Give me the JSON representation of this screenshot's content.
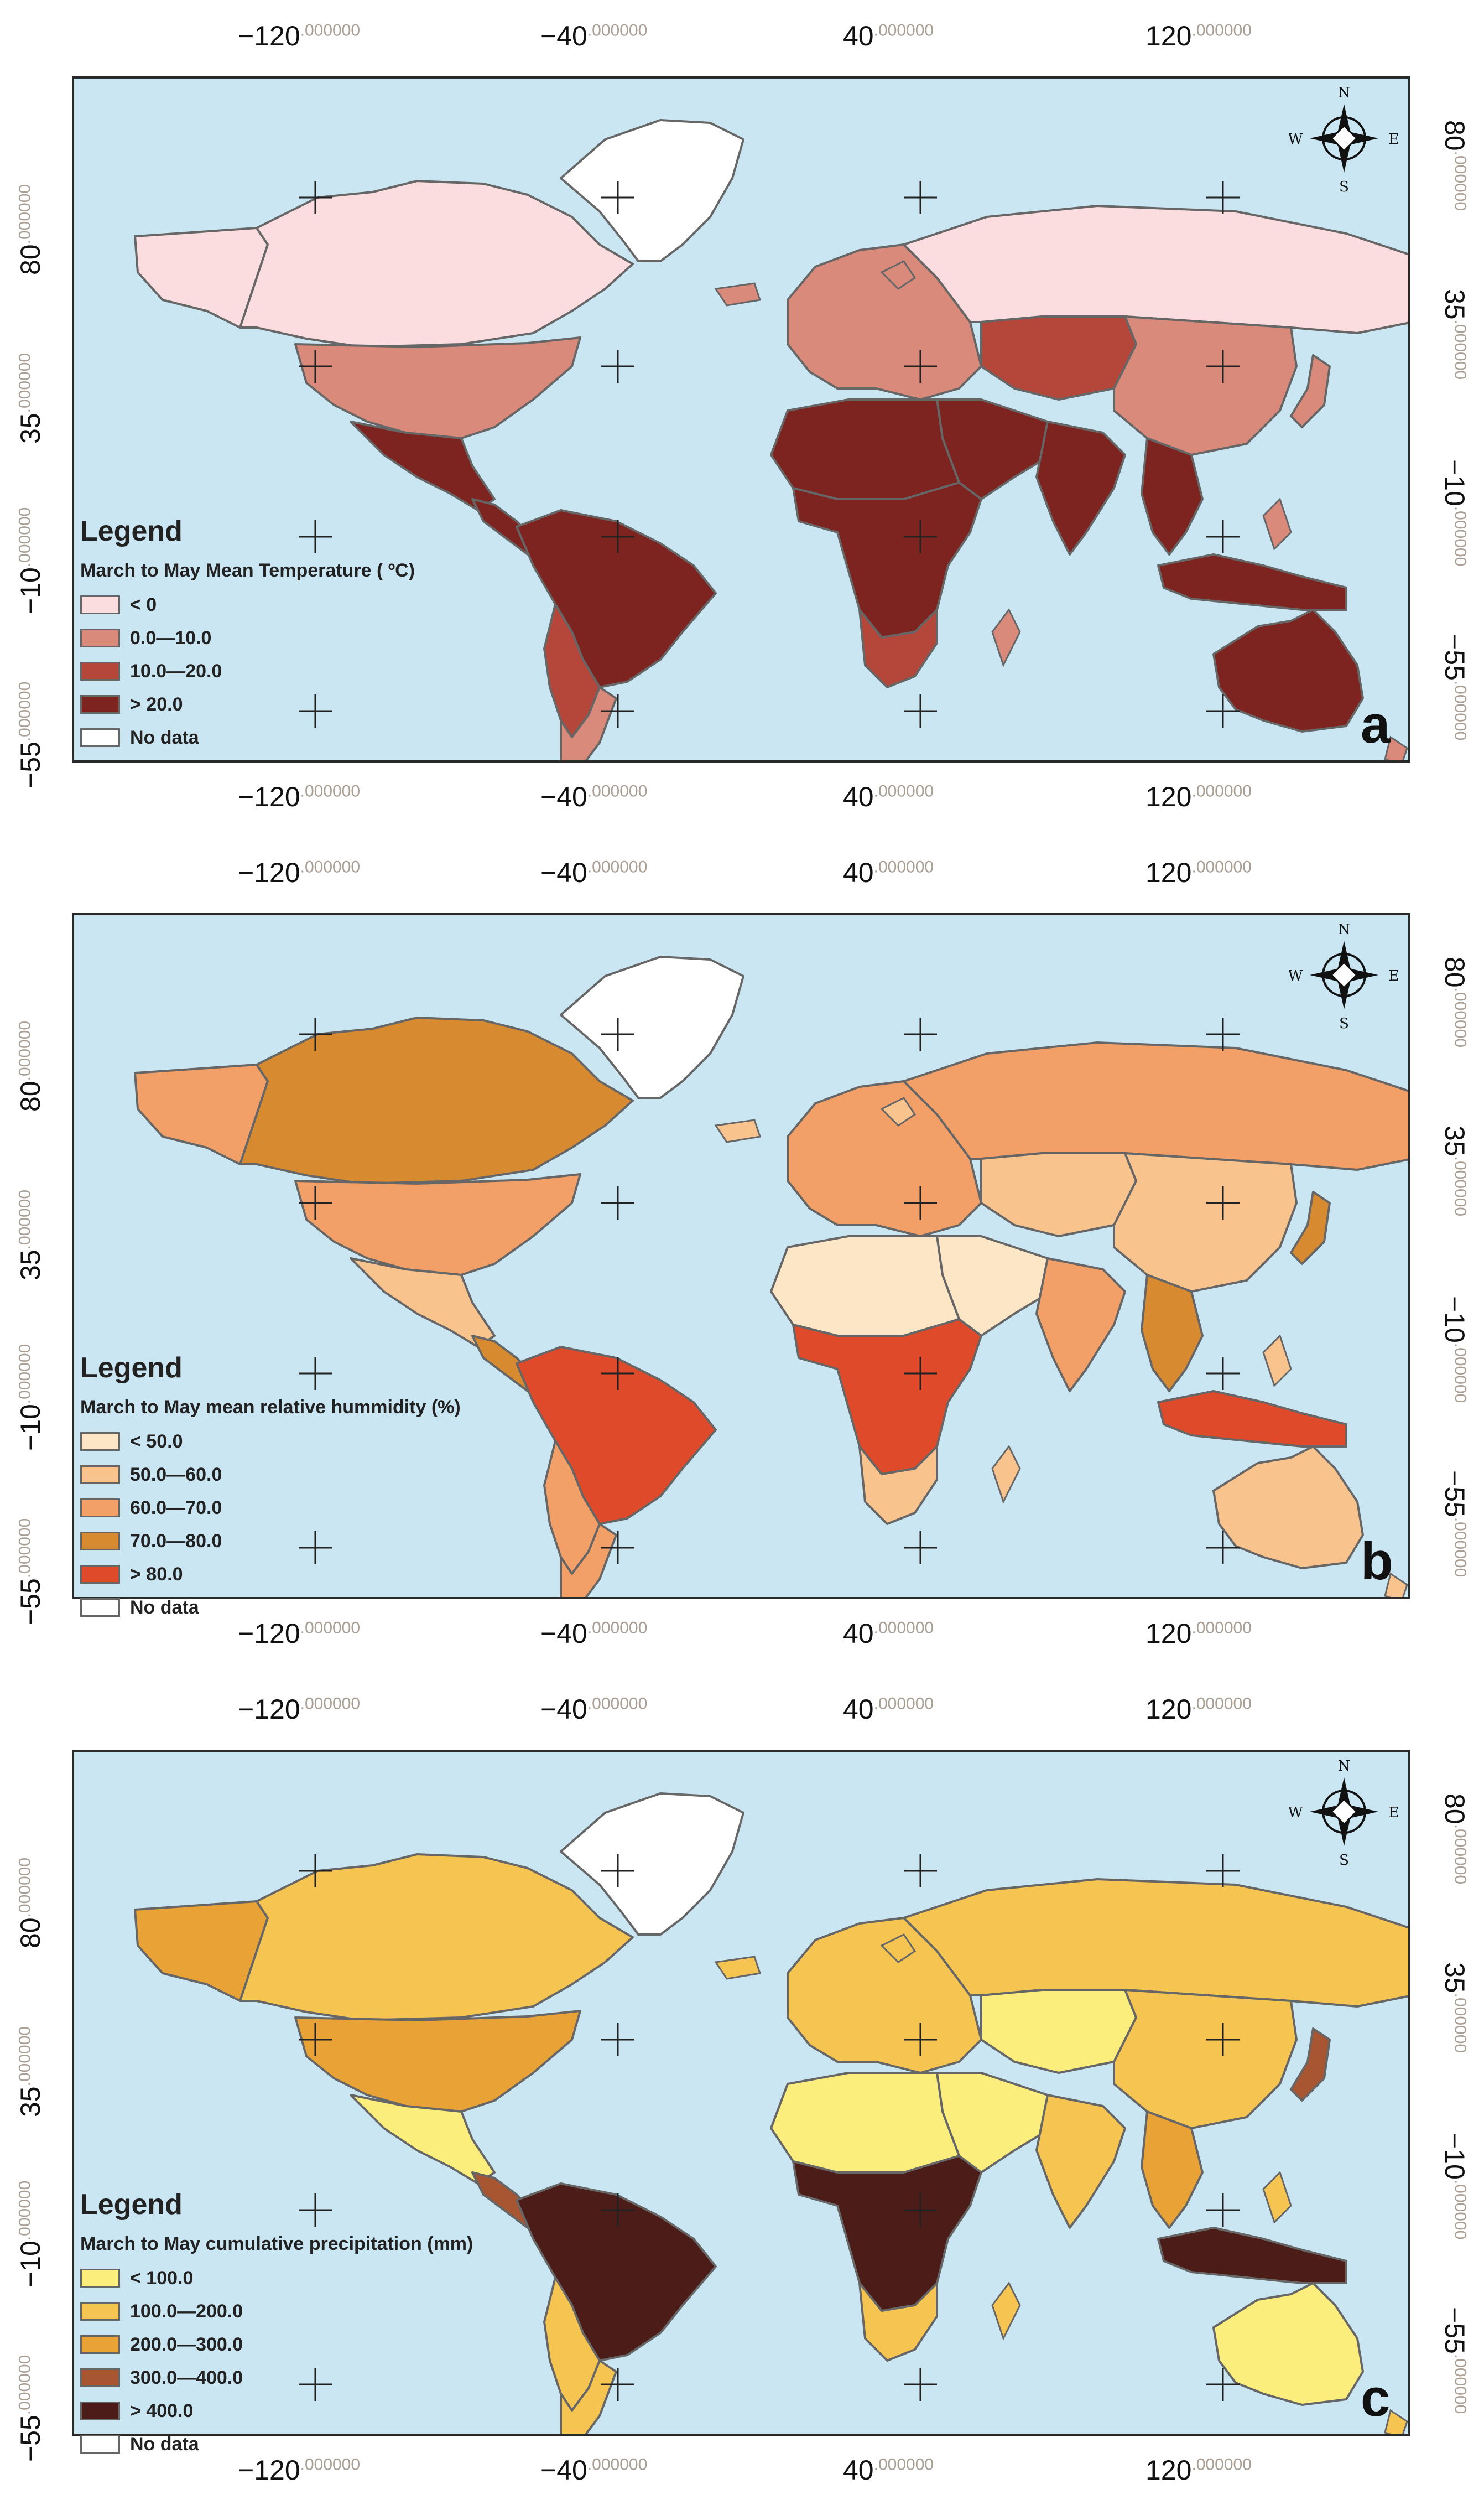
{
  "ticks": {
    "x": [
      {
        "value": "−120",
        "decimals": ".000000"
      },
      {
        "value": "−40",
        "decimals": ".000000"
      },
      {
        "value": "40",
        "decimals": ".000000"
      },
      {
        "value": "120",
        "decimals": ".000000"
      }
    ],
    "y": [
      {
        "value": "80",
        "decimals": ".000000"
      },
      {
        "value": "35",
        "decimals": ".000000"
      },
      {
        "value": "−10",
        "decimals": ".000000"
      },
      {
        "value": "−55",
        "decimals": ".000000"
      }
    ]
  },
  "compass": {
    "n": "N",
    "s": "S",
    "e": "E",
    "w": "W"
  },
  "colors": {
    "ocean": "#cbe6f3",
    "border": "#666666",
    "nodata": "#ffffff"
  },
  "panels": [
    {
      "letter": "a",
      "legend_title": "Legend",
      "legend_subtitle": "March to May Mean Temperature ( ºC)",
      "classes": [
        {
          "label": "< 0",
          "color": "#fbdde0"
        },
        {
          "label": "0.0—10.0",
          "color": "#d98a7a"
        },
        {
          "label": "10.0—20.0",
          "color": "#b4463a"
        },
        {
          "label": "> 20.0",
          "color": "#7e2420"
        },
        {
          "label": "No data",
          "color": "#ffffff"
        }
      ],
      "regions": {
        "canada": 0,
        "alaska": 0,
        "russia": 0,
        "greenland": 4,
        "usa": 1,
        "mexico": 3,
        "central_america": 3,
        "south_america_north": 3,
        "south_america_south": 2,
        "patagonia": 1,
        "europe": 1,
        "north_africa": 3,
        "africa": 3,
        "south_africa": 2,
        "middle_east": 3,
        "central_asia": 2,
        "china": 1,
        "india": 3,
        "southeast_asia": 3,
        "indonesia": 3,
        "japan": 1,
        "australia": 3
      }
    },
    {
      "letter": "b",
      "legend_title": "Legend",
      "legend_subtitle": "March to May mean relative hummidity (%)",
      "classes": [
        {
          "label": "< 50.0",
          "color": "#fde6c5"
        },
        {
          "label": "50.0—60.0",
          "color": "#f9c38d"
        },
        {
          "label": "60.0—70.0",
          "color": "#f2a067"
        },
        {
          "label": "70.0—80.0",
          "color": "#d88a31"
        },
        {
          "label": "> 80.0",
          "color": "#de4a2a"
        },
        {
          "label": "No data",
          "color": "#ffffff"
        }
      ],
      "regions": {
        "canada": 3,
        "alaska": 2,
        "russia": 2,
        "greenland": 5,
        "usa": 2,
        "mexico": 1,
        "central_america": 3,
        "south_america_north": 4,
        "south_america_south": 2,
        "patagonia": 2,
        "europe": 2,
        "north_africa": 0,
        "africa": 4,
        "south_africa": 1,
        "middle_east": 0,
        "central_asia": 1,
        "china": 1,
        "india": 2,
        "southeast_asia": 3,
        "indonesia": 4,
        "japan": 3,
        "australia": 1
      }
    },
    {
      "letter": "c",
      "legend_title": "Legend",
      "legend_subtitle": "March to May cumulative  precipitation (mm)",
      "classes": [
        {
          "label": "< 100.0",
          "color": "#fbee7c"
        },
        {
          "label": "100.0—200.0",
          "color": "#f6c451"
        },
        {
          "label": "200.0—300.0",
          "color": "#e9a236"
        },
        {
          "label": "300.0—400.0",
          "color": "#a85531"
        },
        {
          "label": "> 400.0",
          "color": "#4c1c18"
        },
        {
          "label": "No data",
          "color": "#ffffff"
        }
      ],
      "regions": {
        "canada": 1,
        "alaska": 2,
        "russia": 1,
        "greenland": 5,
        "usa": 2,
        "mexico": 0,
        "central_america": 3,
        "south_america_north": 4,
        "south_america_south": 1,
        "patagonia": 1,
        "europe": 1,
        "north_africa": 0,
        "africa": 4,
        "south_africa": 1,
        "middle_east": 0,
        "central_asia": 0,
        "china": 1,
        "india": 1,
        "southeast_asia": 2,
        "indonesia": 4,
        "japan": 3,
        "australia": 0
      }
    }
  ]
}
